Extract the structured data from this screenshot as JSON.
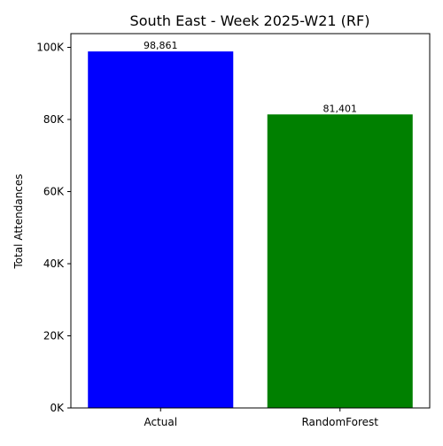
{
  "chart_data": {
    "type": "bar",
    "title": "South East - Week 2025-W21 (RF)",
    "xlabel": "",
    "ylabel": "Total Attendances",
    "categories": [
      "Actual",
      "RandomForest"
    ],
    "values": [
      98861,
      81401
    ],
    "value_labels": [
      "98,861",
      "81,401"
    ],
    "colors": [
      "#0000ff",
      "#008000"
    ],
    "ylim": [
      0,
      103804
    ],
    "yticks": [
      0,
      20000,
      40000,
      60000,
      80000,
      100000
    ],
    "ytick_labels": [
      "0K",
      "20K",
      "40K",
      "60K",
      "80K",
      "100K"
    ],
    "grid": false,
    "legend": false
  }
}
